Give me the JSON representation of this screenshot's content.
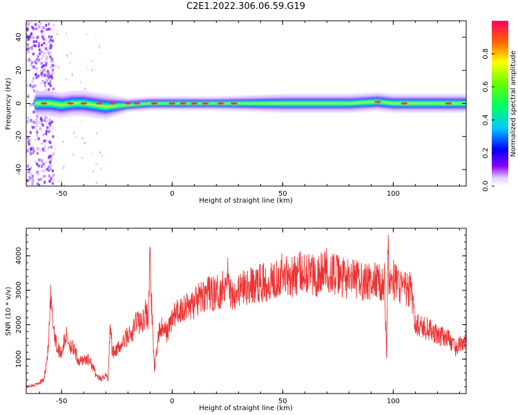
{
  "chart_data": [
    {
      "type": "heatmap",
      "title": "C2E1.2022.306.06.59.G19",
      "xlabel": "Height of straight line (km)",
      "ylabel": "Frequency (Hz)",
      "xlim": [
        -66,
        133
      ],
      "ylim": [
        -50,
        50
      ],
      "xticks": [
        "-50",
        "0",
        "50",
        "100"
      ],
      "yticks": [
        "-40",
        "-20",
        "0",
        "20",
        "40"
      ],
      "colorbar": {
        "label": "Normalized spectral amplitude",
        "range": [
          0,
          1
        ],
        "ticks": [
          "0.0",
          "0.2",
          "0.4",
          "0.6",
          "0.8"
        ]
      },
      "ridge": [
        {
          "x": -62,
          "y": 0
        },
        {
          "x": -55,
          "y": 0
        },
        {
          "x": -50,
          "y": -1
        },
        {
          "x": -45,
          "y": 0
        },
        {
          "x": -40,
          "y": 0
        },
        {
          "x": -35,
          "y": -1
        },
        {
          "x": -30,
          "y": -2
        },
        {
          "x": -20,
          "y": -1
        },
        {
          "x": -10,
          "y": 0
        },
        {
          "x": 0,
          "y": 0
        },
        {
          "x": 20,
          "y": 0
        },
        {
          "x": 50,
          "y": 0
        },
        {
          "x": 80,
          "y": 0
        },
        {
          "x": 93,
          "y": 1
        },
        {
          "x": 100,
          "y": 0
        },
        {
          "x": 133,
          "y": 0
        }
      ],
      "grid": false
    },
    {
      "type": "line",
      "title": "",
      "xlabel": "Height of straight line (km)",
      "ylabel": "SNR (10 * v/v)",
      "xlim": [
        -66,
        133
      ],
      "ylim": [
        0,
        4800
      ],
      "xticks": [
        "-50",
        "0",
        "50",
        "100"
      ],
      "yticks": [
        "1000",
        "2000",
        "3000",
        "4000"
      ],
      "color": "#ee3333",
      "series": [
        {
          "x": [
            -66,
            -62,
            -58,
            -56,
            -55,
            -54,
            -52,
            -50,
            -48,
            -46,
            -44,
            -42,
            -40,
            -38,
            -36,
            -34,
            -32,
            -30,
            -29,
            -28,
            -27,
            -26,
            -24,
            -22,
            -20,
            -18,
            -16,
            -14,
            -12,
            -11,
            -10,
            -9,
            -8,
            -7,
            -6,
            -5,
            -4,
            -2,
            0,
            5,
            10,
            15,
            20,
            22,
            24,
            25,
            26,
            30,
            35,
            40,
            45,
            50,
            55,
            60,
            65,
            70,
            75,
            80,
            85,
            90,
            93,
            95,
            96,
            97,
            97.5,
            98,
            98.5,
            99,
            100,
            102,
            104,
            106,
            108,
            110,
            115,
            120,
            125,
            128,
            130,
            133
          ],
          "y": [
            200,
            250,
            400,
            1300,
            2700,
            2100,
            1300,
            1200,
            1700,
            1400,
            1200,
            900,
            1000,
            1000,
            800,
            500,
            400,
            550,
            400,
            2100,
            1200,
            1300,
            1300,
            1500,
            1700,
            1700,
            2200,
            2000,
            2400,
            2100,
            3900,
            2000,
            700,
            1200,
            1800,
            1900,
            1800,
            1800,
            2200,
            2500,
            2600,
            2900,
            2900,
            3000,
            3200,
            3600,
            2900,
            3000,
            3100,
            3200,
            3300,
            3500,
            3400,
            3600,
            3400,
            3600,
            3400,
            3300,
            3300,
            3200,
            3300,
            3100,
            3400,
            1000,
            4500,
            3300,
            3200,
            3400,
            3300,
            3200,
            3100,
            3000,
            3000,
            2000,
            1900,
            1700,
            1600,
            1300,
            1400,
            1600
          ]
        }
      ],
      "grid": false
    }
  ]
}
